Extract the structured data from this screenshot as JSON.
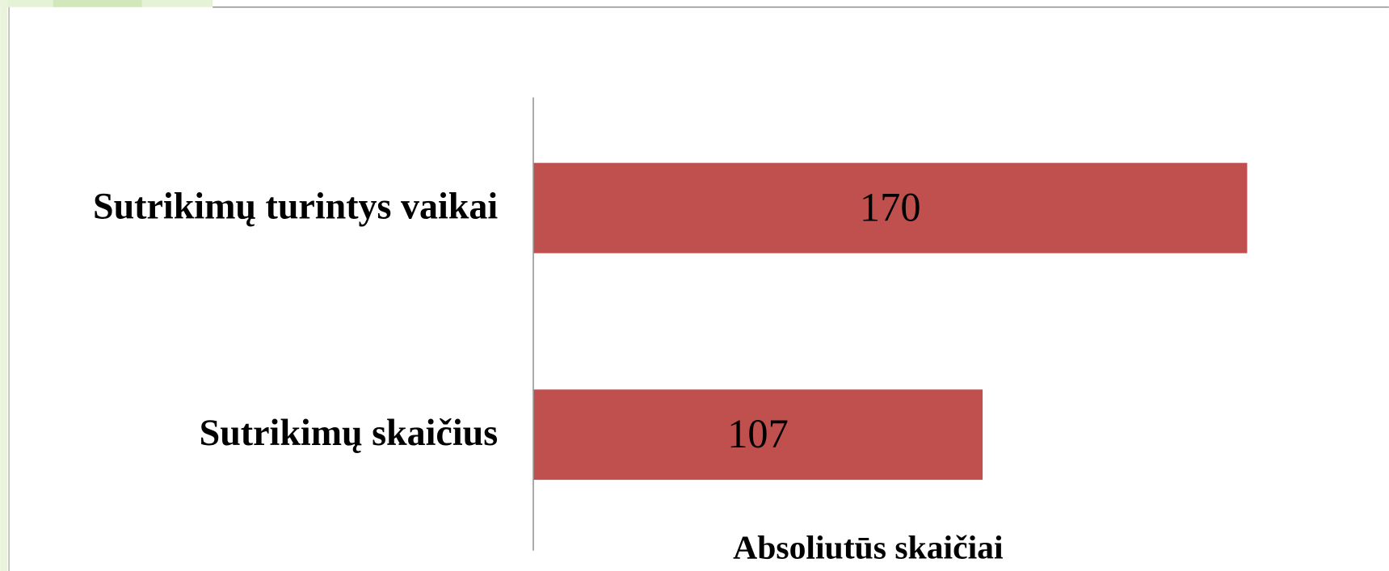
{
  "chart_data": {
    "type": "bar",
    "orientation": "horizontal",
    "categories": [
      "Sutrikimų turintys vaikai",
      "Sutrikimų skaičius"
    ],
    "values": [
      170,
      107
    ],
    "color": "#c0504d",
    "x_label": "Absoliutūs skaičiai"
  }
}
